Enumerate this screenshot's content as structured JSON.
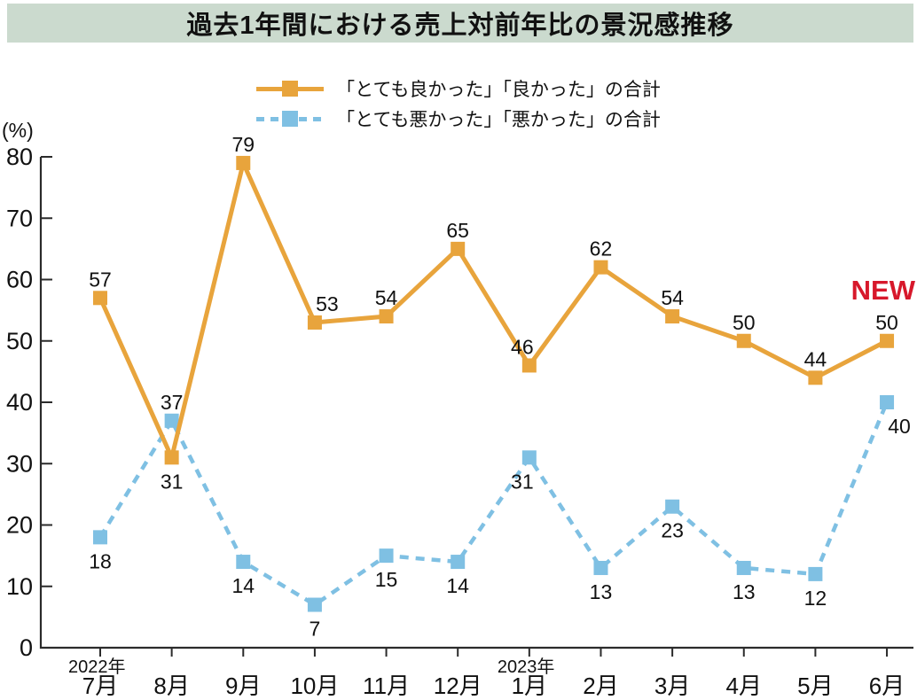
{
  "title": "過去1年間における売上対前年比の景況感推移",
  "legend": {
    "items": [
      {
        "label": "「とても良かった」「良かった」の合計",
        "color": "#E8A43C",
        "line_style": "solid",
        "marker": "square"
      },
      {
        "label": "「とても悪かった」「悪かった」の合計",
        "color": "#7FC0E3",
        "line_style": "dashed",
        "marker": "square"
      }
    ]
  },
  "chart_data": {
    "type": "line",
    "title": "過去1年間における売上対前年比の景況感推移",
    "categories": [
      "7月",
      "8月",
      "9月",
      "10月",
      "11月",
      "12月",
      "1月",
      "2月",
      "3月",
      "4月",
      "5月",
      "6月"
    ],
    "year_markers": [
      {
        "index": 0,
        "label": "2022年"
      },
      {
        "index": 6,
        "label": "2023年"
      }
    ],
    "ylabel": "(%)",
    "ylim": [
      0,
      80
    ],
    "ytick_step": 10,
    "grid": false,
    "legend_position": "top-center",
    "series": [
      {
        "name": "「とても良かった」「良かった」の合計",
        "color": "#E8A43C",
        "line_style": "solid",
        "marker": "square",
        "values": [
          57,
          31,
          79,
          53,
          54,
          65,
          46,
          62,
          54,
          50,
          44,
          50
        ],
        "label_positions": [
          "above",
          "below",
          "above",
          "above",
          "above",
          "above",
          "above",
          "above",
          "above",
          "above",
          "above",
          "above"
        ],
        "label_dx": [
          0,
          0,
          0,
          14,
          0,
          0,
          -8,
          0,
          0,
          0,
          0,
          0
        ]
      },
      {
        "name": "「とても悪かった」「悪かった」の合計",
        "color": "#7FC0E3",
        "line_style": "dashed",
        "marker": "square",
        "values": [
          18,
          37,
          14,
          7,
          15,
          14,
          31,
          13,
          23,
          13,
          12,
          40
        ],
        "label_positions": [
          "below",
          "above",
          "below",
          "below",
          "below",
          "below",
          "below",
          "below",
          "below",
          "below",
          "below",
          "below"
        ],
        "label_dx": [
          0,
          0,
          0,
          0,
          0,
          0,
          -8,
          0,
          0,
          0,
          0,
          14
        ]
      }
    ],
    "annotation": {
      "text": "NEW",
      "color": "#D7182B"
    }
  },
  "colors": {
    "title_bg": "#CBDACE",
    "axis": "#2B2B2B",
    "text": "#111111"
  }
}
